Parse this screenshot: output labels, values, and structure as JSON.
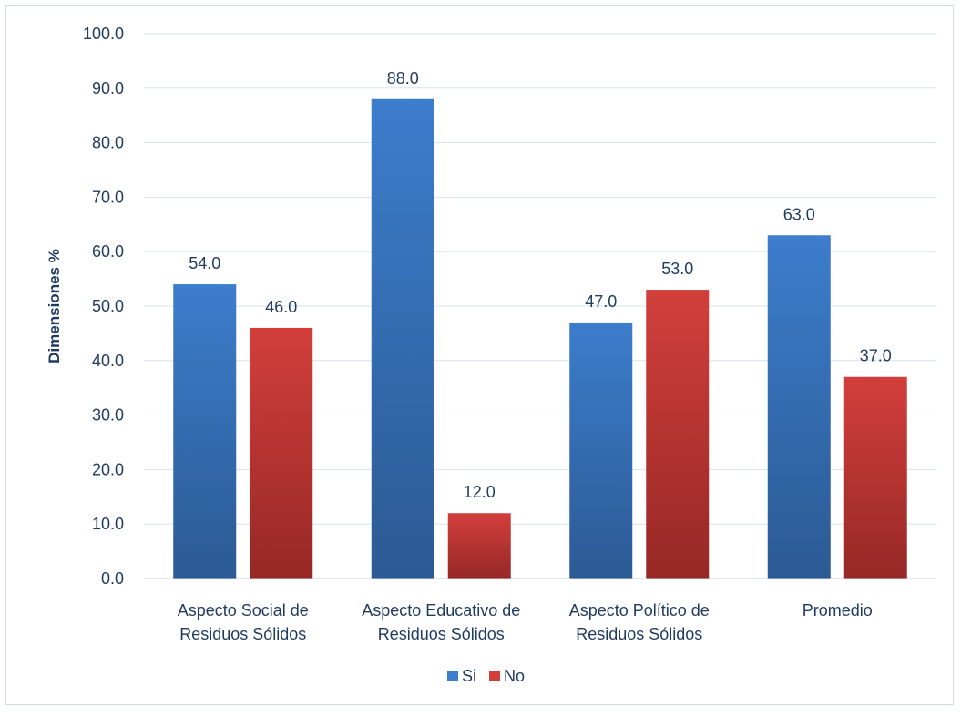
{
  "chart_data": {
    "type": "bar",
    "title": "",
    "xlabel": "",
    "ylabel": "Dimensiones %",
    "ylim": [
      0,
      100
    ],
    "yticks": [
      "0.0",
      "10.0",
      "20.0",
      "30.0",
      "40.0",
      "50.0",
      "60.0",
      "70.0",
      "80.0",
      "90.0",
      "100.0"
    ],
    "categories": [
      [
        "Aspecto Social de",
        "Residuos Sólidos"
      ],
      [
        "Aspecto Educativo de",
        "Residuos Sólidos"
      ],
      [
        "Aspecto Político de",
        "Residuos Sólidos"
      ],
      [
        "Promedio"
      ]
    ],
    "series": [
      {
        "name": "Si",
        "values": [
          54.0,
          88.0,
          47.0,
          63.0
        ],
        "labels": [
          "54.0",
          "88.0",
          "47.0",
          "63.0"
        ],
        "color_top": "#3c7dcc",
        "color_bottom": "#2c5a94"
      },
      {
        "name": "No",
        "values": [
          46.0,
          12.0,
          53.0,
          37.0
        ],
        "labels": [
          "46.0",
          "12.0",
          "53.0",
          "37.0"
        ],
        "color_top": "#d23f3b",
        "color_bottom": "#962826"
      }
    ],
    "grid": true,
    "legend_position": "bottom"
  }
}
